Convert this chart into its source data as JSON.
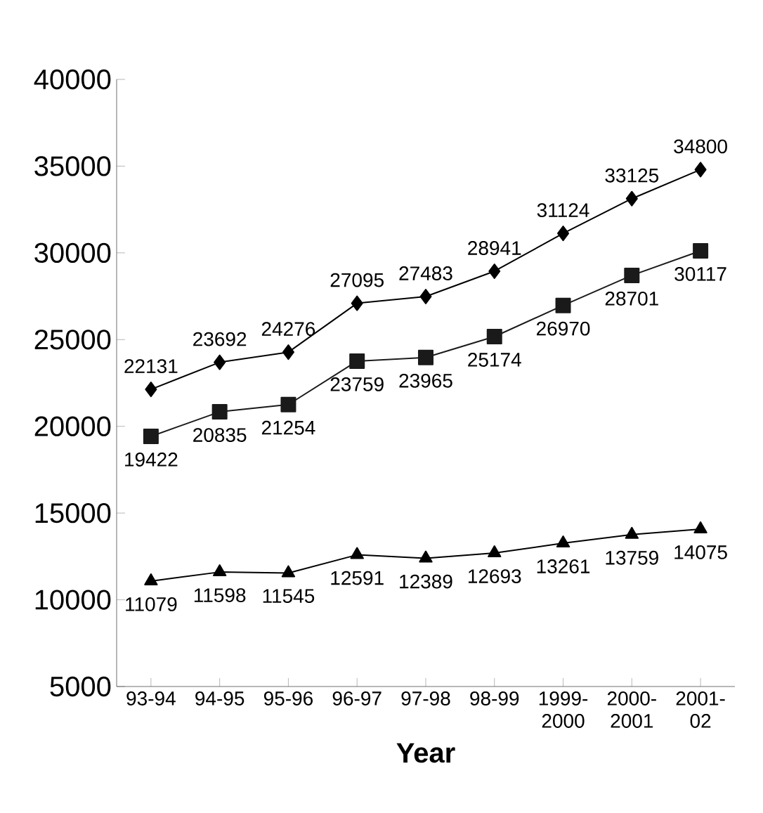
{
  "chart_data": {
    "type": "line",
    "xlabel": "Year",
    "categories": [
      "93-94",
      "94-95",
      "95-96",
      "96-97",
      "97-98",
      "98-99",
      "1999-2000",
      "2000-2001",
      "2001-02"
    ],
    "series": [
      {
        "color": "#000000",
        "marker": "diamond",
        "values": [
          22131,
          23692,
          24276,
          27095,
          27483,
          28941,
          31124,
          33125,
          34800
        ]
      },
      {
        "color": "#1a1a1a",
        "marker": "square",
        "values": [
          19422,
          20835,
          21254,
          23759,
          23965,
          25174,
          26970,
          28701,
          30117
        ]
      },
      {
        "color": "#000000",
        "marker": "triangle",
        "values": [
          11079,
          11598,
          11545,
          12591,
          12389,
          12693,
          13261,
          13759,
          14075
        ]
      }
    ],
    "ylim": [
      5000,
      40000
    ],
    "yticks": [
      5000,
      10000,
      15000,
      20000,
      25000,
      30000,
      35000,
      40000
    ],
    "grid": false,
    "data_labels": true,
    "line_style": "solid"
  }
}
